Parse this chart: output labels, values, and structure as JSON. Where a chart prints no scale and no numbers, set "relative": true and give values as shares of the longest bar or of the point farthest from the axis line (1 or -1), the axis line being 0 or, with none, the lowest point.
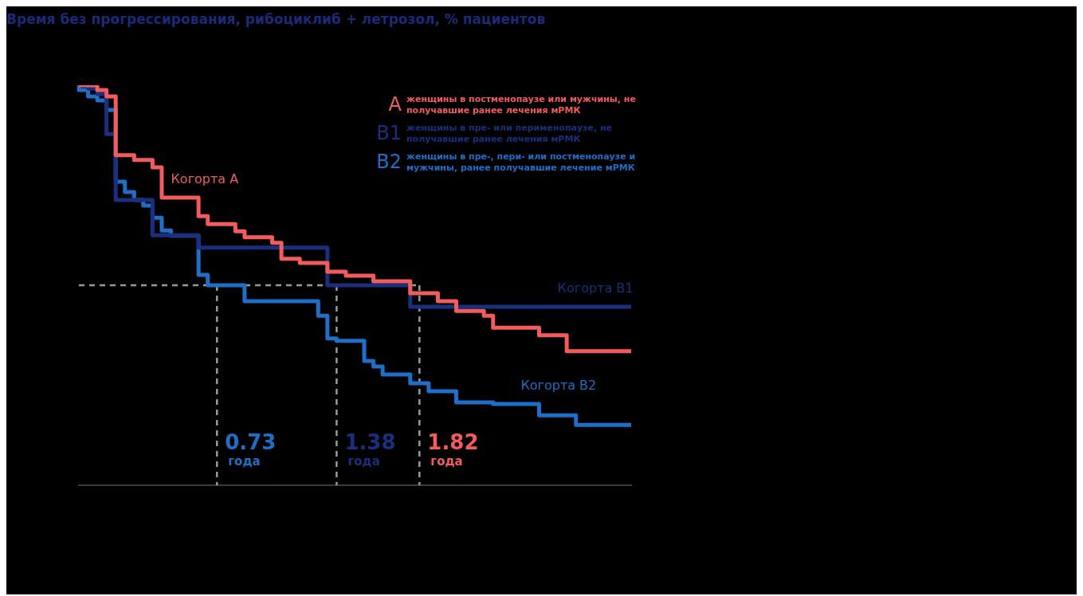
{
  "chart_data": {
    "type": "step",
    "title": "Время без прогрессирования, рибоциклиб + летрозол, % пациентов",
    "relative": true,
    "tick_labels": false,
    "legend": false,
    "line_style": "solid",
    "marker": "none",
    "categories": [
      null,
      null,
      null,
      null,
      null,
      null,
      null,
      null,
      null,
      null,
      null,
      null,
      null,
      null,
      null,
      null,
      null,
      null,
      null,
      null,
      null,
      null,
      null,
      null,
      null,
      null,
      null,
      null,
      null,
      null,
      null,
      null,
      null,
      null,
      null,
      null,
      null,
      null,
      null,
      null,
      null,
      null,
      null,
      null,
      null,
      null,
      null,
      null,
      null,
      null,
      null,
      null,
      null,
      null,
      null,
      null,
      null,
      null,
      null,
      null,
      null
    ],
    "series": [
      {
        "name": "Когорта A",
        "color": "#f25c5c",
        "values": [
          1,
          1,
          1,
          0.988,
          0.972,
          0.825,
          0.825,
          0.813,
          0.813,
          0.795,
          0.719,
          0.719,
          0.719,
          0.719,
          0.673,
          0.653,
          0.653,
          0.653,
          0.635,
          0.62,
          0.62,
          0.62,
          0.606,
          0.566,
          0.566,
          0.556,
          0.556,
          0.556,
          0.534,
          0.534,
          0.524,
          0.524,
          0.524,
          0.51,
          0.51,
          0.51,
          0.51,
          0.48,
          0.48,
          0.48,
          0.46,
          0.46,
          0.436,
          0.436,
          0.436,
          0.424,
          0.394,
          0.394,
          0.394,
          0.394,
          0.394,
          0.375,
          0.375,
          0.375,
          0.335,
          0.335,
          0.335,
          0.335,
          0.335,
          0.335,
          0.335
        ]
      },
      {
        "name": "Когорта B1",
        "color": "#1b2f7f",
        "values": [
          1,
          1,
          0.992,
          0.978,
          0.878,
          0.713,
          0.713,
          0.713,
          0.713,
          0.625,
          0.625,
          0.625,
          0.625,
          0.625,
          0.594,
          0.594,
          0.594,
          0.594,
          0.594,
          0.594,
          0.594,
          0.594,
          0.594,
          0.594,
          0.594,
          0.594,
          0.594,
          0.594,
          0.5,
          0.5,
          0.5,
          0.5,
          0.5,
          0.5,
          0.5,
          0.5,
          0.5,
          0.446,
          0.446,
          0.446,
          0.446,
          0.446,
          0.446,
          0.446,
          0.446,
          0.446,
          0.446,
          0.446,
          0.446,
          0.446,
          0.446,
          0.446,
          0.446,
          0.446,
          0.446,
          0.446,
          0.446,
          0.446,
          0.446,
          0.446,
          0.446
        ]
      },
      {
        "name": "Когорта B2",
        "color": "#1f6fc8",
        "values": [
          1,
          0.988,
          0.972,
          0.962,
          0.938,
          0.759,
          0.733,
          0.713,
          0.699,
          0.669,
          0.637,
          0.624,
          0.624,
          0.624,
          0.526,
          0.5,
          0.5,
          0.5,
          0.5,
          0.46,
          0.46,
          0.46,
          0.46,
          0.46,
          0.46,
          0.46,
          0.46,
          0.424,
          0.367,
          0.361,
          0.361,
          0.361,
          0.311,
          0.297,
          0.277,
          0.277,
          0.277,
          0.255,
          0.255,
          0.235,
          0.235,
          0.235,
          0.207,
          0.207,
          0.207,
          0.207,
          0.203,
          0.203,
          0.203,
          0.203,
          0.203,
          0.175,
          0.175,
          0.175,
          0.175,
          0.151,
          0.151,
          0.151,
          0.151,
          0.151,
          0.151
        ]
      }
    ],
    "ref_lines": [
      {
        "axis": "y",
        "value": 0.5,
        "line_style": "dashed",
        "color": "#9a9a9a"
      }
    ],
    "annotations": [
      "A",
      "женщины в постменопаузе или мужчины, не получавшие ранее лечения мРМК",
      "B1",
      "женщины в пре- или перименопаузе, не получавшие ранее лечения мРМК",
      "B2",
      "женщины в пре-, пери- или постменопаузе и мужчины, ранее получавшие лечение мРМК",
      "0.73 года",
      "1.38 года",
      "1.82 года"
    ]
  }
}
